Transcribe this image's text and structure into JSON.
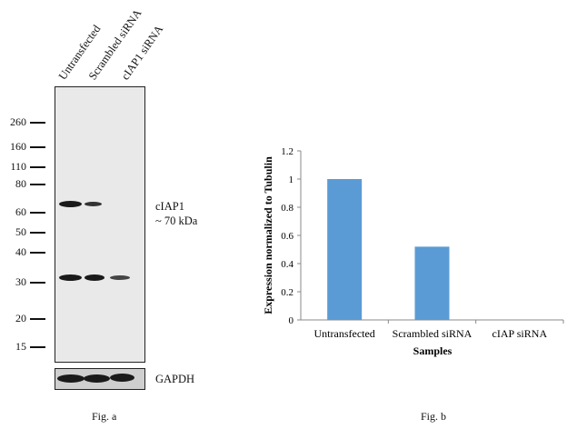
{
  "fig_a": {
    "caption": "Fig. a",
    "lane_labels": [
      "Untransfected",
      "Scrambled siRNA",
      "cIAP1 siRNA"
    ],
    "mw_markers": [
      "260",
      "160",
      "110",
      "80",
      "60",
      "50",
      "40",
      "30",
      "20",
      "15"
    ],
    "band_label_line1": "cIAP1",
    "band_label_line2": "~ 70 kDa",
    "loading_control_label": "GAPDH"
  },
  "fig_b": {
    "caption": "Fig. b"
  },
  "chart_data": {
    "type": "bar",
    "categories": [
      "Untransfected",
      "Scrambled siRNA",
      "cIAP siRNA"
    ],
    "values": [
      1.0,
      0.52,
      0
    ],
    "title": "",
    "xlabel": "Samples",
    "ylabel": "Expression normalized to Tubulin",
    "ylim": [
      0,
      1.2
    ],
    "yticks": [
      "0",
      "0.2",
      "0.4",
      "0.6",
      "0.8",
      "1",
      "1.2"
    ],
    "grid": false,
    "bar_color": "#5b9bd5"
  }
}
